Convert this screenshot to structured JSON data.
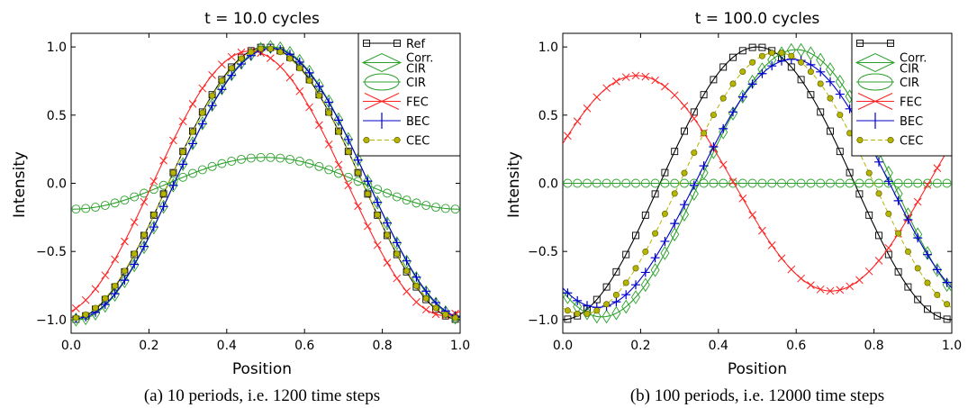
{
  "chart_data": [
    {
      "type": "line",
      "title": "t = 10.0 cycles",
      "xlabel": "Position",
      "ylabel": "Intensity",
      "caption": "(a)  10 periods, i.e. 1200 time steps",
      "xlim": [
        0.0,
        1.0
      ],
      "ylim": [
        -1.1,
        1.1
      ],
      "xticks": [
        "0.0",
        "0.2",
        "0.4",
        "0.6",
        "0.8",
        "1.0"
      ],
      "yticks": [
        "1.0",
        "0.5",
        "0.0",
        "−0.5",
        "−1.0"
      ],
      "legend_position": "top-right",
      "grid": false,
      "series": [
        {
          "name": "Ref",
          "color": "#000000",
          "marker": "square",
          "fn": "cos",
          "amp": 1.0,
          "peak": 0.5
        },
        {
          "name": "Corr. CIR",
          "color": "#2ca02c",
          "marker": "diamond",
          "fn": "cos",
          "amp": 1.0,
          "peak": 0.515
        },
        {
          "name": "CIR",
          "color": "#2ca02c",
          "marker": "circle",
          "fn": "cos",
          "amp": 0.19,
          "peak": 0.5
        },
        {
          "name": "FEC",
          "color": "#ff2222",
          "marker": "x",
          "fn": "cos",
          "amp": 0.97,
          "peak": 0.46
        },
        {
          "name": "BEC",
          "color": "#0000cc",
          "marker": "plus",
          "fn": "cos",
          "amp": 0.99,
          "peak": 0.515
        },
        {
          "name": "CEC",
          "color": "#b5b500",
          "marker": "dot",
          "fn": "cos",
          "amp": 0.99,
          "peak": 0.5
        }
      ]
    },
    {
      "type": "line",
      "title": "t = 100.0 cycles",
      "xlabel": "Position",
      "ylabel": "Intensity",
      "caption": "(b)  100 periods, i.e. 12000 time steps",
      "xlim": [
        0.0,
        1.0
      ],
      "ylim": [
        -1.1,
        1.1
      ],
      "xticks": [
        "0.0",
        "0.2",
        "0.4",
        "0.6",
        "0.8",
        "1.0"
      ],
      "yticks": [
        "1.0",
        "0.5",
        "0.0",
        "−0.5",
        "−1.0"
      ],
      "legend_position": "top-right",
      "grid": false,
      "series": [
        {
          "name": "",
          "color": "#000000",
          "marker": "square",
          "fn": "cos",
          "amp": 1.0,
          "peak": 0.5
        },
        {
          "name": "Corr. CIR",
          "color": "#2ca02c",
          "marker": "diamond",
          "fn": "cos",
          "amp": 0.98,
          "peak": 0.6
        },
        {
          "name": "CIR",
          "color": "#2ca02c",
          "marker": "circle",
          "fn": "cos",
          "amp": 0.0,
          "peak": 0.5
        },
        {
          "name": "FEC",
          "color": "#ff2222",
          "marker": "x",
          "fn": "cos",
          "amp": 0.79,
          "peak": 0.19
        },
        {
          "name": "BEC",
          "color": "#0000cc",
          "marker": "plus",
          "fn": "cos",
          "amp": 0.91,
          "peak": 0.59
        },
        {
          "name": "CEC",
          "color": "#b5b500",
          "marker": "dot",
          "fn": "cos",
          "amp": 0.96,
          "peak": 0.55
        }
      ]
    }
  ]
}
